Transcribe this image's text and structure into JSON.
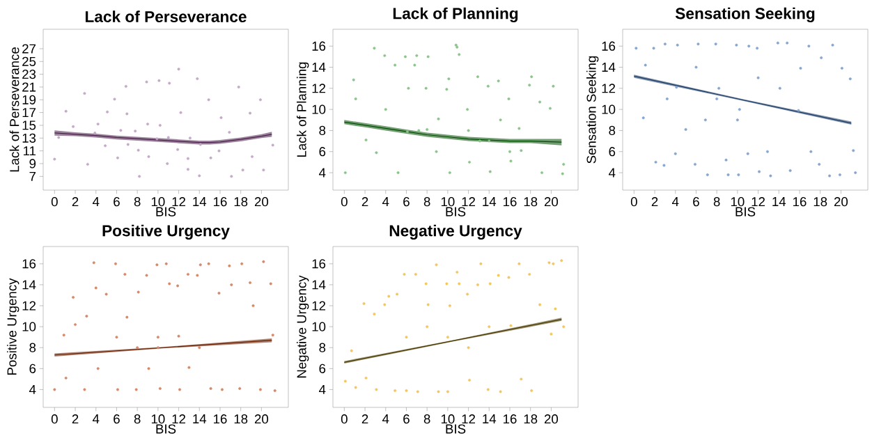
{
  "chart_data": [
    {
      "type": "scatter",
      "title": "Lack of Perseverance",
      "xlabel": "BIS",
      "ylabel": "Lack of Perseverance",
      "xlim": [
        -1.1,
        22.6
      ],
      "ylim": [
        4.85,
        30.05
      ],
      "xticks": [
        0,
        2,
        4,
        6,
        8,
        10,
        12,
        14,
        16,
        18,
        20
      ],
      "yticks": [
        7,
        9,
        11,
        13,
        15,
        17,
        19,
        21,
        23,
        25,
        27
      ],
      "grid": false,
      "series": [
        {
          "type": "scatter",
          "marker": "circle",
          "color": "#c4a9c8",
          "x": [
            0,
            0.4,
            1.1,
            1.8,
            2.9,
            3.2,
            3.9,
            4.2,
            4.9,
            5.1,
            5.8,
            6.1,
            6.4,
            6.9,
            7.1,
            7.8,
            8.2,
            8.9,
            9.1,
            9.9,
            10.1,
            10.2,
            10.9,
            11.1,
            11.9,
            12.0,
            12.2,
            12.9,
            13.1,
            13.8,
            14.0,
            14.1,
            14.9,
            15.1,
            15.9,
            16.1,
            16.9,
            17.1,
            17.8,
            18.2,
            18.9,
            19.1,
            19.9,
            20.2,
            21.1,
            7.0,
            8.1,
            9.0,
            11.0,
            12.9
          ],
          "values": [
            9.7,
            13.1,
            17.2,
            14.8,
            20.0,
            8.9,
            13.8,
            15.2,
            11.8,
            17.1,
            19.1,
            9.9,
            14.2,
            21.1,
            12.0,
            14.1,
            7.0,
            21.8,
            10.1,
            12.9,
            22.0,
            15.0,
            9.0,
            21.6,
            11.2,
            23.8,
            17.0,
            8.1,
            13.0,
            22.3,
            7.1,
            12.0,
            19.0,
            9.9,
            11.0,
            16.2,
            13.9,
            7.0,
            21.0,
            8.0,
            16.9,
            10.1,
            19.0,
            8.0,
            11.9,
            16.8,
            11.1,
            15.2,
            13.1,
            9.8
          ]
        },
        {
          "type": "line",
          "color": "#4a1f4a",
          "line_style": "solid",
          "marker": "none",
          "x": [
            0,
            2,
            4,
            6,
            8,
            10,
            12,
            14,
            15,
            16,
            18,
            20,
            21
          ],
          "values": [
            13.8,
            13.6,
            13.4,
            13.1,
            12.9,
            12.7,
            12.5,
            12.3,
            12.3,
            12.4,
            12.8,
            13.3,
            13.6
          ],
          "lower": [
            13.4,
            13.3,
            13.1,
            12.8,
            12.6,
            12.4,
            12.2,
            12.0,
            12.0,
            12.1,
            12.5,
            13.0,
            13.2
          ],
          "upper": [
            14.2,
            13.9,
            13.7,
            13.4,
            13.2,
            13.0,
            12.8,
            12.6,
            12.6,
            12.7,
            13.1,
            13.6,
            14.0
          ]
        }
      ]
    },
    {
      "type": "scatter",
      "title": "Lack of Planning",
      "xlabel": "BIS",
      "ylabel": "Lack of Planning",
      "xlim": [
        -1.1,
        22.6
      ],
      "ylim": [
        2.35,
        17.6
      ],
      "xticks": [
        0,
        2,
        4,
        6,
        8,
        10,
        12,
        14,
        16,
        18,
        20
      ],
      "yticks": [
        4,
        6,
        8,
        10,
        12,
        14,
        16
      ],
      "grid": false,
      "series": [
        {
          "type": "scatter",
          "marker": "circle",
          "color": "#8cc48c",
          "x": [
            0.1,
            0.9,
            1.1,
            2.1,
            2.9,
            3.1,
            3.9,
            4.0,
            4.9,
            5.2,
            5.9,
            6.2,
            6.8,
            7.0,
            7.2,
            7.9,
            8.1,
            8.9,
            9.1,
            9.9,
            10.1,
            10.2,
            10.8,
            10.9,
            11.1,
            11.9,
            12.1,
            12.9,
            13.1,
            13.9,
            14.1,
            14.9,
            15.1,
            15.9,
            16.1,
            16.9,
            17.1,
            17.9,
            18.1,
            18.9,
            19.1,
            19.9,
            20.2,
            21.1,
            21.2,
            6.1,
            8.0,
            12.0,
            14.0,
            16.0
          ],
          "values": [
            4.0,
            12.8,
            11.0,
            7.1,
            15.8,
            5.9,
            15.1,
            10.0,
            14.2,
            4.0,
            15.0,
            12.0,
            14.2,
            15.1,
            8.0,
            12.0,
            15.0,
            6.0,
            9.1,
            11.9,
            12.9,
            4.0,
            16.1,
            15.9,
            15.2,
            10.0,
            5.0,
            13.1,
            7.0,
            12.2,
            4.1,
            12.7,
            9.0,
            11.0,
            5.1,
            8.2,
            6.1,
            12.3,
            13.1,
            10.7,
            4.0,
            10.1,
            12.2,
            3.9,
            4.8,
            7.9,
            8.1,
            8.0,
            7.0,
            6.0
          ]
        },
        {
          "type": "line",
          "color": "#004d00",
          "line_style": "solid",
          "marker": "none",
          "x": [
            0,
            2,
            4,
            6,
            8,
            10,
            12,
            14,
            16,
            18,
            21
          ],
          "values": [
            8.8,
            8.5,
            8.2,
            7.9,
            7.6,
            7.4,
            7.2,
            7.1,
            7.0,
            7.0,
            6.9
          ],
          "lower": [
            8.6,
            8.3,
            8.0,
            7.7,
            7.4,
            7.2,
            7.0,
            6.9,
            6.8,
            6.8,
            6.6
          ],
          "upper": [
            9.0,
            8.7,
            8.4,
            8.1,
            7.8,
            7.6,
            7.4,
            7.3,
            7.2,
            7.2,
            7.2
          ]
        }
      ]
    },
    {
      "type": "scatter",
      "title": "Sensation Seeking",
      "xlabel": "BIS",
      "ylabel": "Sensation Seeking",
      "xlim": [
        -1.1,
        22.6
      ],
      "ylim": [
        2.35,
        17.6
      ],
      "xticks": [
        0,
        2,
        4,
        6,
        8,
        10,
        12,
        14,
        16,
        18,
        20
      ],
      "yticks": [
        4,
        6,
        8,
        10,
        12,
        14,
        16
      ],
      "grid": false,
      "series": [
        {
          "type": "scatter",
          "marker": "circle",
          "color": "#86a6d0",
          "x": [
            0.2,
            0.9,
            1.1,
            1.9,
            2.1,
            2.9,
            3.0,
            3.2,
            4.0,
            4.2,
            5.0,
            5.9,
            6.2,
            6.9,
            7.1,
            7.9,
            8.2,
            8.9,
            9.1,
            9.9,
            10.1,
            10.2,
            11.0,
            11.1,
            11.9,
            12.1,
            12.9,
            13.2,
            13.9,
            14.1,
            14.8,
            15.1,
            15.9,
            16.1,
            16.9,
            17.1,
            17.9,
            18.1,
            18.9,
            19.2,
            19.9,
            20.1,
            20.9,
            21.2,
            21.4,
            8.0,
            10.0,
            12.0,
            6.0,
            4.1
          ],
          "values": [
            15.8,
            9.2,
            14.2,
            15.8,
            5.0,
            4.7,
            16.2,
            11.0,
            5.8,
            16.1,
            8.1,
            4.8,
            16.2,
            9.0,
            3.8,
            16.2,
            12.0,
            5.2,
            3.8,
            16.1,
            3.8,
            10.0,
            5.8,
            16.0,
            15.8,
            4.1,
            6.0,
            3.7,
            16.3,
            12.0,
            16.3,
            4.2,
            9.9,
            13.9,
            16.0,
            6.0,
            4.8,
            14.9,
            3.7,
            16.1,
            3.8,
            13.9,
            12.9,
            6.1,
            4.0,
            11.0,
            9.0,
            13.0,
            14.0,
            12.1
          ]
        },
        {
          "type": "line",
          "color": "#1a3a66",
          "line_style": "solid",
          "marker": "none",
          "x": [
            0,
            10.5,
            21
          ],
          "values": [
            13.15,
            10.9,
            8.7
          ],
          "lower": [
            13.0,
            10.82,
            8.55
          ],
          "upper": [
            13.3,
            10.98,
            8.85
          ]
        }
      ]
    },
    {
      "type": "scatter",
      "title": "Positive Urgency",
      "xlabel": "BIS",
      "ylabel": "Positive Urgency",
      "xlim": [
        -1.1,
        22.6
      ],
      "ylim": [
        2.3,
        17.65
      ],
      "xticks": [
        0,
        2,
        4,
        6,
        8,
        10,
        12,
        14,
        16,
        18,
        20
      ],
      "yticks": [
        4,
        6,
        8,
        10,
        12,
        14,
        16
      ],
      "grid": false,
      "series": [
        {
          "type": "scatter",
          "marker": "circle",
          "color": "#d48a6a",
          "x": [
            0.0,
            0.9,
            1.1,
            1.8,
            2.0,
            2.9,
            3.1,
            3.8,
            4.0,
            4.2,
            5.0,
            5.9,
            6.1,
            6.8,
            7.0,
            7.9,
            8.1,
            8.9,
            9.1,
            9.9,
            10.0,
            10.2,
            10.8,
            11.1,
            11.9,
            12.1,
            12.9,
            13.0,
            13.8,
            14.1,
            14.9,
            15.1,
            15.9,
            16.2,
            16.9,
            17.1,
            17.9,
            18.1,
            18.9,
            19.2,
            19.9,
            20.2,
            20.9,
            21.1,
            21.3,
            6.0,
            8.0,
            10.0,
            12.0,
            14.0
          ],
          "values": [
            4.0,
            9.2,
            5.1,
            12.8,
            10.2,
            4.0,
            11.0,
            16.1,
            13.7,
            6.0,
            13.1,
            16.0,
            4.0,
            15.0,
            10.9,
            4.0,
            13.3,
            14.9,
            6.0,
            15.9,
            8.0,
            4.1,
            16.0,
            14.1,
            13.9,
            4.0,
            15.0,
            6.1,
            14.9,
            15.9,
            16.0,
            4.1,
            13.2,
            4.0,
            15.8,
            14.0,
            4.1,
            16.0,
            14.2,
            12.0,
            4.0,
            16.2,
            14.1,
            9.2,
            3.9,
            9.0,
            8.0,
            9.0,
            9.1,
            8.0
          ]
        },
        {
          "type": "line",
          "color": "#6b1f00",
          "line_style": "solid",
          "marker": "none",
          "x": [
            0,
            10.5,
            21
          ],
          "values": [
            7.3,
            8.0,
            8.7
          ],
          "lower": [
            7.15,
            7.93,
            8.52
          ],
          "upper": [
            7.45,
            8.07,
            8.88
          ]
        }
      ]
    },
    {
      "type": "scatter",
      "title": "Negative Urgency",
      "xlabel": "BIS",
      "ylabel": "Negative Urgency",
      "xlim": [
        -1.1,
        22.6
      ],
      "ylim": [
        2.3,
        17.65
      ],
      "xticks": [
        0,
        2,
        4,
        6,
        8,
        10,
        12,
        14,
        16,
        18,
        20
      ],
      "yticks": [
        4,
        6,
        8,
        10,
        12,
        14,
        16
      ],
      "grid": false,
      "series": [
        {
          "type": "scatter",
          "marker": "circle",
          "color": "#f2c761",
          "x": [
            0.1,
            0.7,
            1.1,
            1.9,
            2.1,
            2.9,
            3.1,
            3.9,
            4.3,
            4.9,
            5.1,
            5.8,
            6.0,
            6.9,
            7.1,
            7.9,
            8.1,
            8.9,
            9.1,
            9.9,
            10.0,
            10.2,
            10.9,
            11.1,
            11.9,
            12.1,
            12.9,
            13.2,
            13.9,
            14.1,
            14.9,
            15.1,
            15.9,
            16.1,
            16.9,
            17.1,
            17.9,
            18.1,
            18.9,
            19.8,
            20.0,
            20.2,
            20.4,
            21.0,
            21.2,
            6.0,
            8.0,
            10.0,
            12.0,
            14.0
          ],
          "values": [
            4.8,
            7.7,
            4.2,
            12.2,
            5.1,
            11.2,
            4.0,
            12.1,
            12.9,
            3.9,
            13.1,
            15.0,
            3.9,
            15.0,
            3.8,
            14.1,
            12.1,
            15.9,
            3.8,
            14.1,
            3.8,
            12.0,
            15.2,
            14.1,
            13.1,
            4.9,
            14.0,
            16.0,
            4.0,
            14.1,
            14.9,
            3.8,
            14.7,
            10.1,
            16.0,
            5.0,
            15.0,
            3.9,
            12.1,
            16.1,
            9.3,
            16.0,
            11.7,
            16.3,
            10.0,
            9.0,
            10.0,
            9.0,
            8.0,
            10.0
          ]
        },
        {
          "type": "line",
          "color": "#4a3a00",
          "line_style": "solid",
          "marker": "none",
          "x": [
            0,
            10.5,
            21
          ],
          "values": [
            6.6,
            8.65,
            10.7
          ],
          "lower": [
            6.48,
            8.58,
            10.55
          ],
          "upper": [
            6.72,
            8.72,
            10.85
          ]
        }
      ]
    }
  ]
}
